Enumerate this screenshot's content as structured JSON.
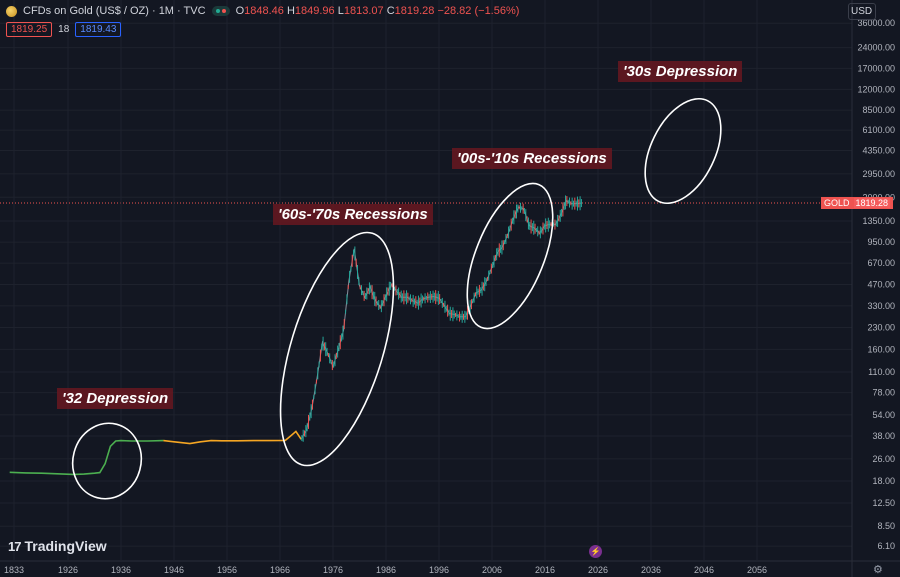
{
  "header": {
    "symbol": "CFDs on Gold (US$ / OZ) · 1M · TVC",
    "o_label": "O",
    "o": "1848.46",
    "h_label": "H",
    "h": "1849.96",
    "l_label": "L",
    "l": "1813.07",
    "c_label": "C",
    "c": "1819.28",
    "change": "−28.82 (−1.56%)"
  },
  "subheader": {
    "sell": "1819.25",
    "spread": "18",
    "buy": "1819.43"
  },
  "currency": "USD",
  "price_tag": {
    "name": "GOLD",
    "value": "1819.28"
  },
  "brand": {
    "name": "TradingView",
    "mark": "17"
  },
  "colors": {
    "background": "#131722",
    "early_line": "#4caf50",
    "mid_line": "#f5a623",
    "up_candle": "#26a69a",
    "down_candle": "#ef5350",
    "label_bg": "#681820"
  },
  "icons": [
    "coin-icon",
    "market-status-icon",
    "tradingview-logo-icon",
    "flash-icon",
    "settings-icon"
  ],
  "chart_data": {
    "type": "line",
    "y_scale": "log",
    "x_ticks": [
      "1833",
      "1926",
      "1936",
      "1946",
      "1956",
      "1966",
      "1976",
      "1986",
      "1996",
      "2006",
      "2016",
      "2026",
      "2036",
      "2046",
      "2056"
    ],
    "y_ticks": [
      "36000.00",
      "24000.00",
      "17000.00",
      "12000.00",
      "8500.00",
      "6100.00",
      "4350.00",
      "2950.00",
      "2000.00",
      "1350.00",
      "950.00",
      "670.00",
      "470.00",
      "330.00",
      "230.00",
      "160.00",
      "110.00",
      "78.00",
      "54.00",
      "38.00",
      "26.00",
      "18.00",
      "12.50",
      "8.50",
      "6.10"
    ],
    "current_price": 1819.28,
    "series": [
      {
        "x": [
          1915,
          1918,
          1921,
          1924,
          1927,
          1929,
          1931,
          1932,
          1933,
          1934,
          1935,
          1936,
          1938,
          1941,
          1944
        ],
        "values": [
          20.8,
          20.6,
          20.5,
          20.3,
          20.1,
          20.2,
          20.5,
          20.7,
          24,
          32,
          35,
          35.2,
          35,
          35,
          35.2
        ]
      },
      {
        "x": [
          1944,
          1946,
          1949,
          1951,
          1953,
          1955,
          1958,
          1961,
          1964,
          1967,
          1968,
          1969,
          1970
        ],
        "values": [
          35.2,
          34.5,
          33.5,
          34.5,
          35.2,
          35.1,
          35.1,
          35.2,
          35.2,
          35.3,
          38,
          41,
          36
        ]
      },
      {
        "x": [
          1970,
          1971,
          1972,
          1973,
          1974,
          1975,
          1976,
          1977,
          1978,
          1979,
          1980,
          1981,
          1982,
          1983,
          1984,
          1985,
          1986,
          1987,
          1988,
          1989,
          1990,
          1991,
          1992,
          1993,
          1994,
          1995,
          1996,
          1997,
          1998,
          1999,
          2000,
          2001,
          2002,
          2003,
          2004,
          2005,
          2006,
          2007,
          2008,
          2009,
          2010,
          2011,
          2012,
          2013,
          2014,
          2015,
          2016,
          2017,
          2018,
          2019,
          2020,
          2021,
          2022,
          2023
        ],
        "values": [
          36,
          42,
          60,
          100,
          180,
          150,
          120,
          160,
          220,
          500,
          850,
          460,
          380,
          450,
          360,
          320,
          390,
          470,
          420,
          380,
          380,
          360,
          345,
          370,
          380,
          385,
          375,
          330,
          290,
          285,
          275,
          275,
          330,
          410,
          430,
          500,
          630,
          800,
          880,
          1080,
          1400,
          1700,
          1650,
          1250,
          1200,
          1100,
          1250,
          1280,
          1270,
          1500,
          1890,
          1800,
          1800,
          1820
        ]
      }
    ],
    "annotations": [
      "'32 Depression",
      "'60s-'70s Recessions",
      "'00s-'10s Recessions",
      "'30s Depression"
    ]
  }
}
